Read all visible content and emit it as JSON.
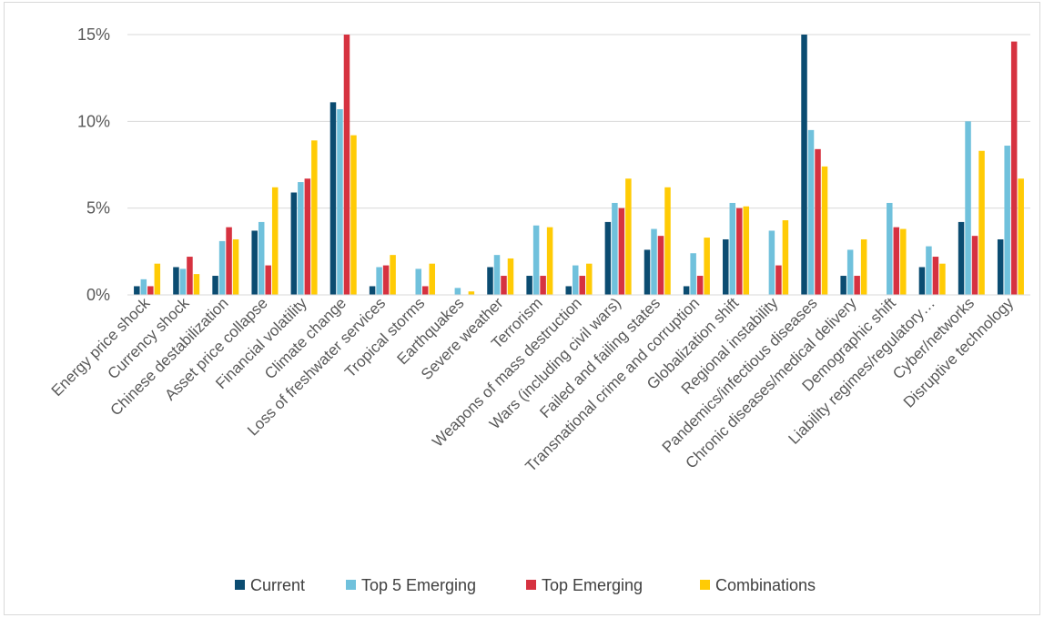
{
  "chart_data": {
    "type": "bar",
    "title": "",
    "xlabel": "",
    "ylabel": "",
    "ylim": [
      0,
      15
    ],
    "yticks": [
      {
        "value": 0,
        "label": "0%"
      },
      {
        "value": 5,
        "label": "5%"
      },
      {
        "value": 10,
        "label": "10%"
      },
      {
        "value": 15,
        "label": "15%"
      }
    ],
    "grid": "horizontal",
    "legend": "bottom",
    "categories": [
      "Energy price shock",
      "Currency shock",
      "Chinese destabilization",
      "Asset price collapse",
      "Financial volatility",
      "Climate change",
      "Loss of freshwater services",
      "Tropical storms",
      "Earthquakes",
      "Severe weather",
      "Terrorism",
      "Weapons of mass destruction",
      "Wars (including civil wars)",
      "Failed and failing states",
      "Transnational crime and corruption",
      "Globalization shift",
      "Regional instability",
      "Pandemics/infectious diseases",
      "Chronic diseases/medical delivery",
      "Demographic shift",
      "Liability regimes/regulatory…",
      "Cyber/networks",
      "Disruptive technology"
    ],
    "series": [
      {
        "name": "Current",
        "color": "#0b4c71",
        "values": [
          0.5,
          1.6,
          1.1,
          3.7,
          5.9,
          11.1,
          0.5,
          0,
          0,
          1.6,
          1.1,
          0.5,
          4.2,
          2.6,
          0.5,
          3.2,
          0,
          15.3,
          1.1,
          0,
          1.6,
          4.2,
          3.2
        ]
      },
      {
        "name": "Top 5 Emerging",
        "color": "#70c1dc",
        "values": [
          0.9,
          1.5,
          3.1,
          4.2,
          6.5,
          10.7,
          1.6,
          1.5,
          0.4,
          2.3,
          4.0,
          1.7,
          5.3,
          3.8,
          2.4,
          5.3,
          3.7,
          9.5,
          2.6,
          5.3,
          2.8,
          10.0,
          8.6
        ]
      },
      {
        "name": "Top Emerging",
        "color": "#d63240",
        "values": [
          0.5,
          2.2,
          3.9,
          1.7,
          6.7,
          15.3,
          1.7,
          0.5,
          0,
          1.1,
          1.1,
          1.1,
          5.0,
          3.4,
          1.1,
          5.0,
          1.7,
          8.4,
          1.1,
          3.9,
          2.2,
          3.4,
          14.6
        ]
      },
      {
        "name": "Combinations",
        "color": "#ffcb05",
        "values": [
          1.8,
          1.2,
          3.2,
          6.2,
          8.9,
          9.2,
          2.3,
          1.8,
          0.2,
          2.1,
          3.9,
          1.8,
          6.7,
          6.2,
          3.3,
          5.1,
          4.3,
          7.4,
          3.2,
          3.8,
          1.8,
          8.3,
          6.7
        ]
      }
    ]
  }
}
